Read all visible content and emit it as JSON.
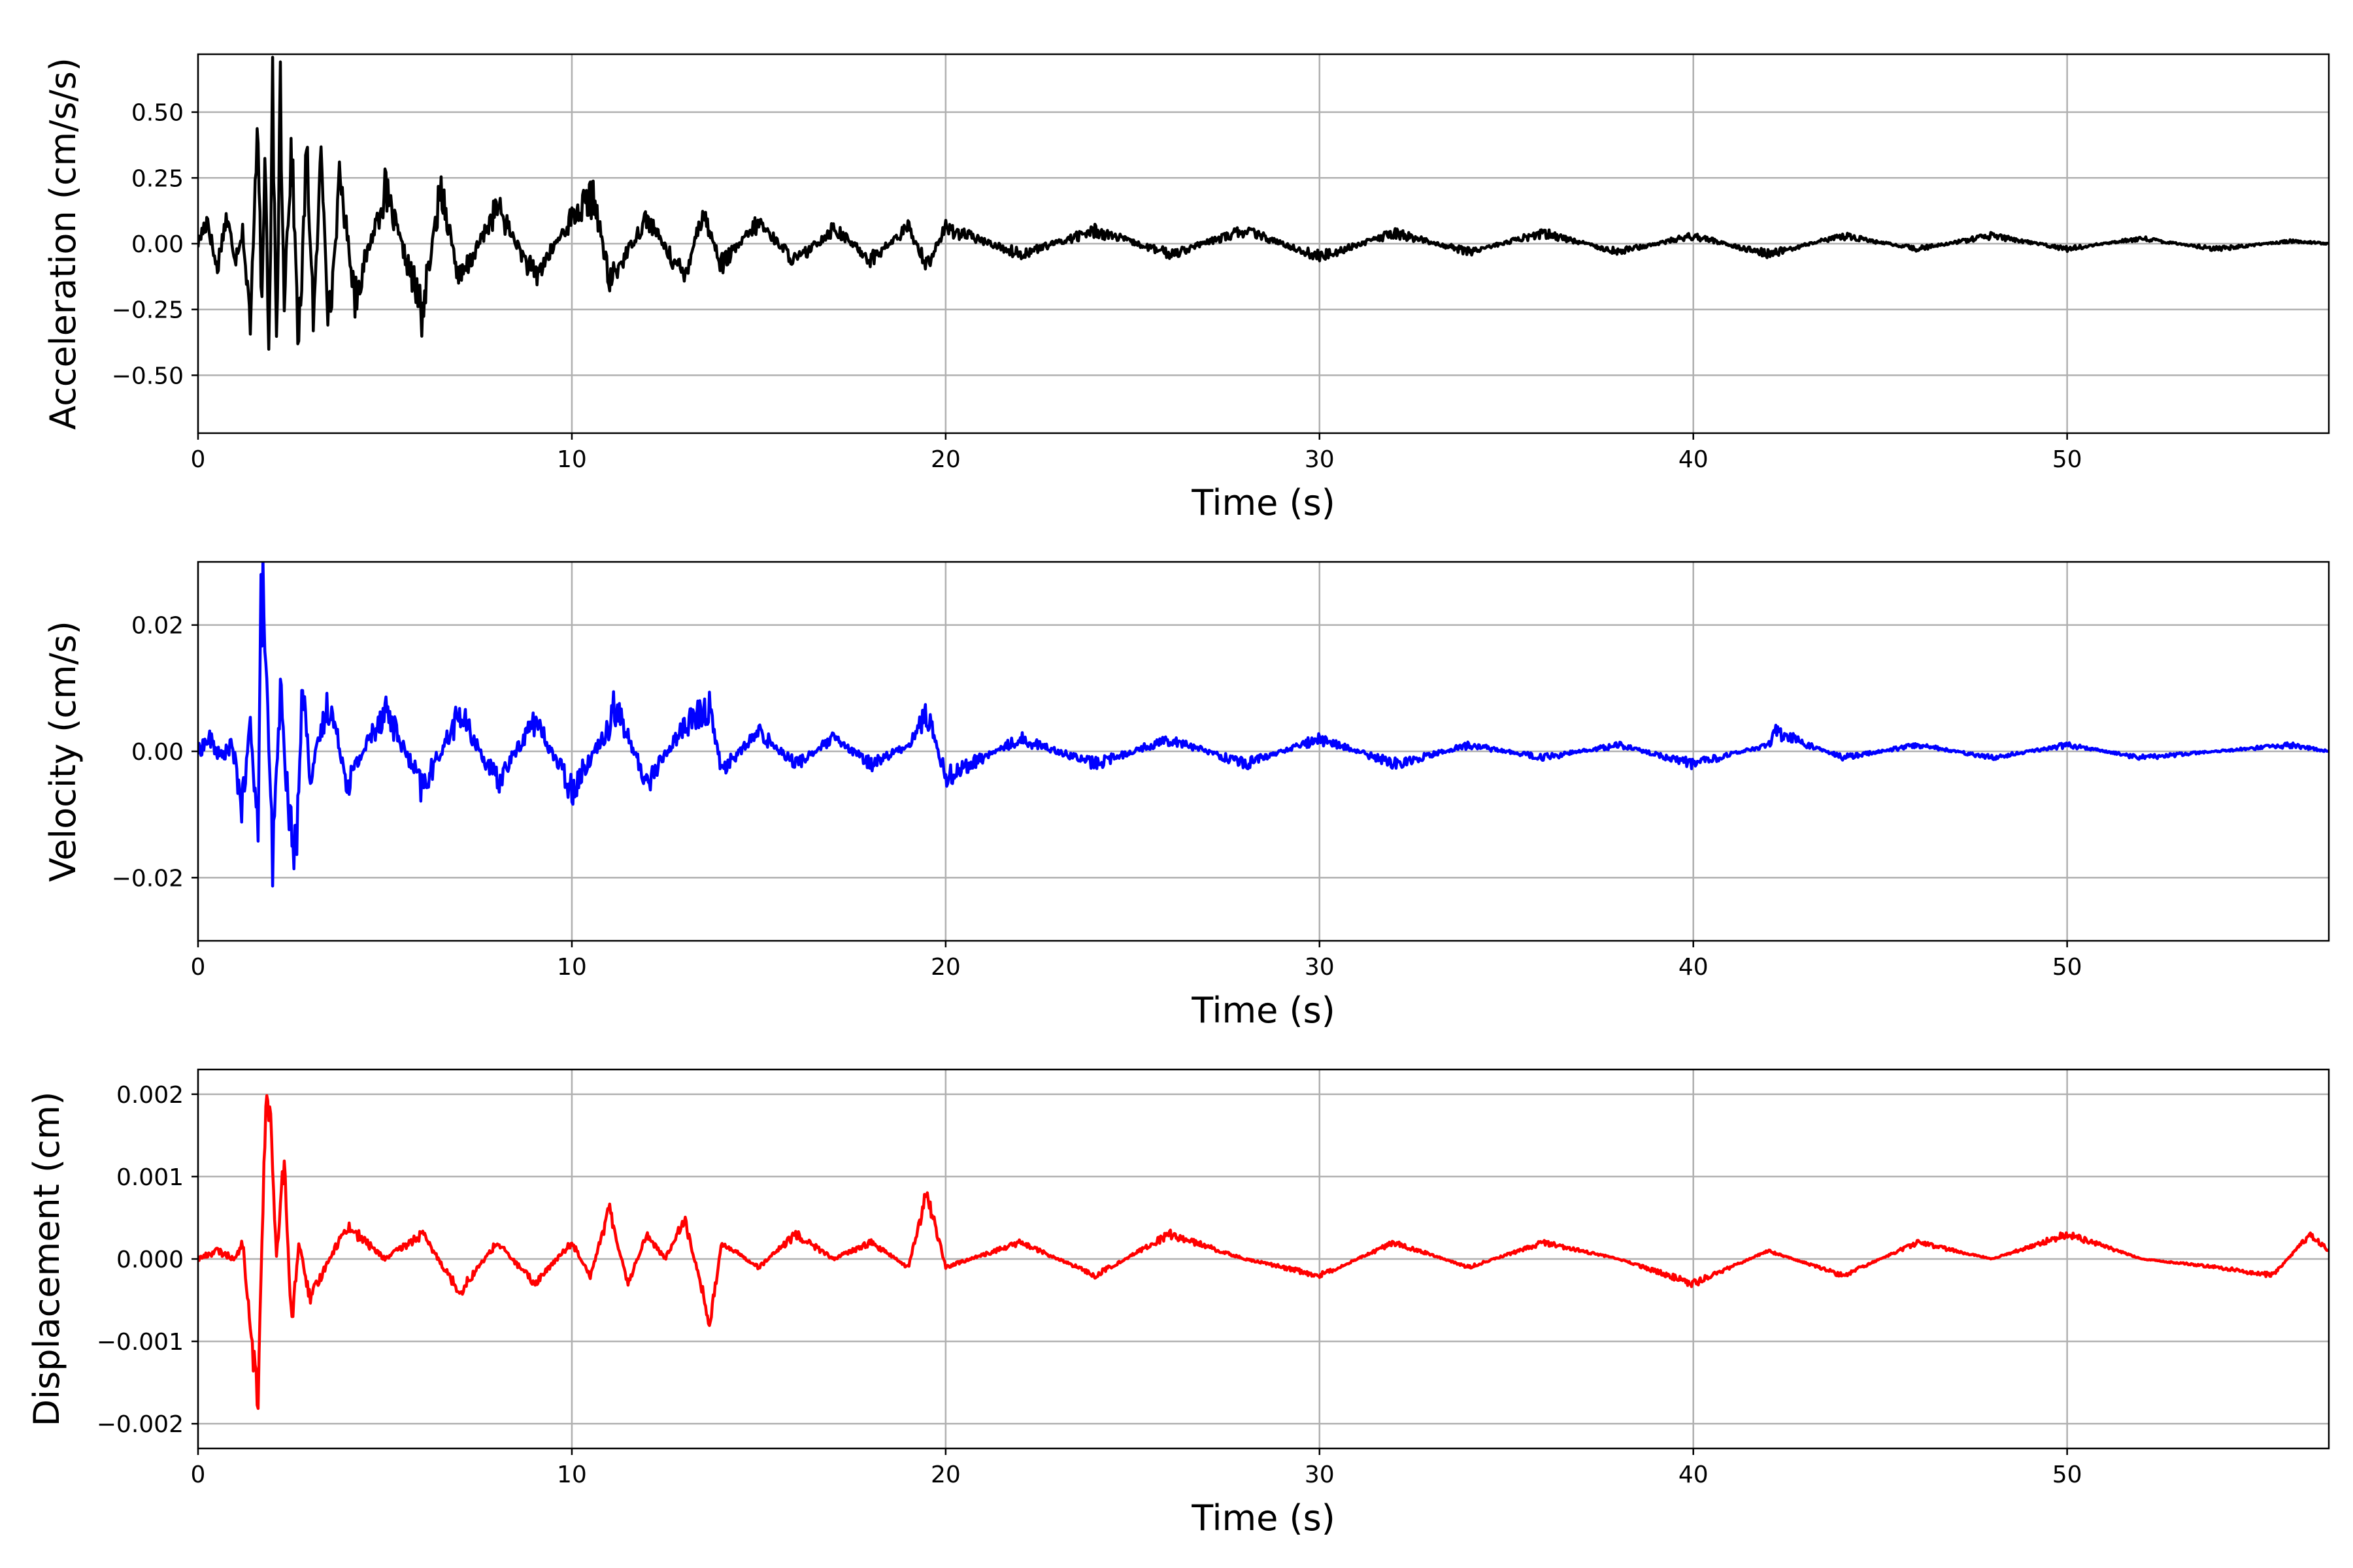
{
  "chart_data": [
    {
      "type": "line",
      "xlabel": "Time (s)",
      "ylabel": "Acceleration (cm/s/s)",
      "xlim": [
        0,
        57
      ],
      "ylim": [
        -0.72,
        0.72
      ],
      "xticks": [
        0,
        10,
        20,
        30,
        40,
        50
      ],
      "xtick_labels": [
        "0",
        "10",
        "20",
        "30",
        "40",
        "50"
      ],
      "yticks": [
        0.5,
        0.25,
        0.0,
        -0.25,
        -0.5
      ],
      "ytick_labels": [
        "0.50",
        "0.25",
        "0.00",
        "−0.25",
        "−0.50"
      ],
      "grid": true,
      "color": "#000000",
      "series": [
        {
          "x": [
            0,
            0.25,
            0.5,
            0.75,
            1,
            1.2,
            1.4,
            1.6,
            1.7,
            1.8,
            1.9,
            2,
            2.1,
            2.2,
            2.3,
            2.5,
            2.7,
            2.9,
            3.1,
            3.3,
            3.5,
            3.8,
            4.2,
            5,
            6,
            6.5,
            7,
            8,
            9,
            10,
            10.6,
            11,
            12,
            13,
            13.5,
            14,
            15,
            16,
            17,
            18,
            19,
            19.5,
            20,
            22,
            24,
            26,
            28,
            30,
            32,
            34,
            36,
            38,
            40,
            42,
            44,
            46,
            48,
            50,
            52,
            54,
            56,
            57
          ],
          "y": [
            0.0,
            0.1,
            -0.1,
            0.1,
            -0.05,
            0.05,
            -0.35,
            0.59,
            -0.3,
            0.4,
            -0.52,
            0.62,
            -0.5,
            0.65,
            -0.2,
            0.37,
            -0.4,
            0.35,
            -0.3,
            0.37,
            -0.32,
            0.25,
            -0.2,
            0.2,
            -0.26,
            0.22,
            -0.15,
            0.14,
            -0.13,
            0.1,
            0.18,
            -0.15,
            0.1,
            -0.13,
            0.12,
            -0.08,
            0.08,
            -0.07,
            0.06,
            -0.06,
            0.06,
            -0.08,
            0.06,
            -0.04,
            0.05,
            -0.04,
            0.05,
            -0.05,
            0.04,
            -0.03,
            0.04,
            -0.03,
            0.03,
            -0.04,
            0.03,
            -0.02,
            0.03,
            -0.02,
            0.02,
            -0.02,
            0.01,
            0.0
          ]
        }
      ]
    },
    {
      "type": "line",
      "xlabel": "Time (s)",
      "ylabel": "Velocity (cm/s)",
      "xlim": [
        0,
        57
      ],
      "ylim": [
        -0.03,
        0.03
      ],
      "xticks": [
        0,
        10,
        20,
        30,
        40,
        50
      ],
      "xtick_labels": [
        "0",
        "10",
        "20",
        "30",
        "40",
        "50"
      ],
      "yticks": [
        0.02,
        0.0,
        -0.02
      ],
      "ytick_labels": [
        "0.02",
        "0.00",
        "−0.02"
      ],
      "grid": true,
      "color": "#0000ff",
      "series": [
        {
          "x": [
            0,
            0.3,
            0.6,
            0.9,
            1.2,
            1.4,
            1.6,
            1.7,
            1.8,
            1.9,
            2,
            2.2,
            2.4,
            2.6,
            2.8,
            3,
            3.5,
            4,
            5,
            6,
            7,
            8,
            9,
            10,
            11,
            11.1,
            12,
            13,
            13.7,
            14,
            15,
            16,
            17,
            18,
            19,
            19.5,
            20,
            22,
            24,
            26,
            28,
            30,
            32,
            34,
            36,
            38,
            40,
            42,
            42.2,
            44,
            46,
            48,
            50,
            52,
            54,
            56,
            57
          ],
          "y": [
            0.0,
            0.002,
            -0.001,
            0.001,
            -0.009,
            0.005,
            -0.013,
            0.027,
            0.018,
            -0.002,
            -0.018,
            0.01,
            -0.008,
            -0.018,
            0.011,
            -0.004,
            0.008,
            -0.005,
            0.007,
            -0.006,
            0.006,
            -0.005,
            0.005,
            -0.006,
            0.004,
            0.008,
            -0.005,
            0.004,
            0.007,
            -0.003,
            0.003,
            -0.002,
            0.002,
            -0.002,
            0.001,
            0.006,
            -0.004,
            0.002,
            -0.002,
            0.002,
            -0.002,
            0.002,
            -0.002,
            0.001,
            -0.001,
            0.001,
            -0.002,
            0.001,
            0.003,
            -0.001,
            0.001,
            -0.001,
            0.001,
            -0.001,
            0.0,
            0.001,
            0.0
          ]
        }
      ]
    },
    {
      "type": "line",
      "xlabel": "Time (s)",
      "ylabel": "Displacement (cm)",
      "xlim": [
        0,
        57
      ],
      "ylim": [
        -0.0023,
        0.0023
      ],
      "xticks": [
        0,
        10,
        20,
        30,
        40,
        50
      ],
      "xtick_labels": [
        "0",
        "10",
        "20",
        "30",
        "40",
        "50"
      ],
      "yticks": [
        0.002,
        0.001,
        0.0,
        -0.001,
        -0.002
      ],
      "ytick_labels": [
        "0.002",
        "0.001",
        "0.000",
        "−0.001",
        "−0.002"
      ],
      "grid": true,
      "color": "#ff0000",
      "series": [
        {
          "x": [
            0,
            0.5,
            1,
            1.2,
            1.4,
            1.6,
            1.8,
            1.9,
            2.1,
            2.3,
            2.5,
            2.7,
            3,
            3.5,
            4,
            5,
            6,
            7,
            8,
            9,
            10,
            10.5,
            11,
            11.5,
            12,
            12.5,
            13,
            13.5,
            13.7,
            14,
            15,
            16,
            17,
            18,
            19,
            19.5,
            20,
            22,
            24,
            26,
            28,
            30,
            32,
            34,
            36,
            38,
            40,
            42,
            44,
            46,
            48,
            50,
            52,
            54,
            55.5,
            56.5,
            57
          ],
          "y": [
            0.0,
            0.0001,
            0.0,
            0.0002,
            -0.0009,
            -0.0017,
            0.0018,
            0.002,
            0.0,
            0.0012,
            -0.0008,
            0.0002,
            -0.0005,
            0.0,
            0.0004,
            0.0,
            0.0003,
            -0.0004,
            0.0002,
            -0.0003,
            0.0002,
            -0.0002,
            0.0006,
            -0.0003,
            0.0003,
            0.0,
            0.0005,
            -0.0004,
            -0.0008,
            0.0002,
            -0.0001,
            0.0003,
            0.0,
            0.0002,
            -0.0001,
            0.0008,
            -0.0001,
            0.0002,
            -0.0002,
            0.0003,
            0.0,
            -0.0002,
            0.0002,
            -0.0001,
            0.0002,
            0.0,
            -0.0003,
            0.0001,
            -0.0002,
            0.0002,
            0.0,
            0.0003,
            0.0,
            -0.0001,
            -0.0002,
            0.0003,
            0.0001
          ]
        }
      ]
    }
  ]
}
